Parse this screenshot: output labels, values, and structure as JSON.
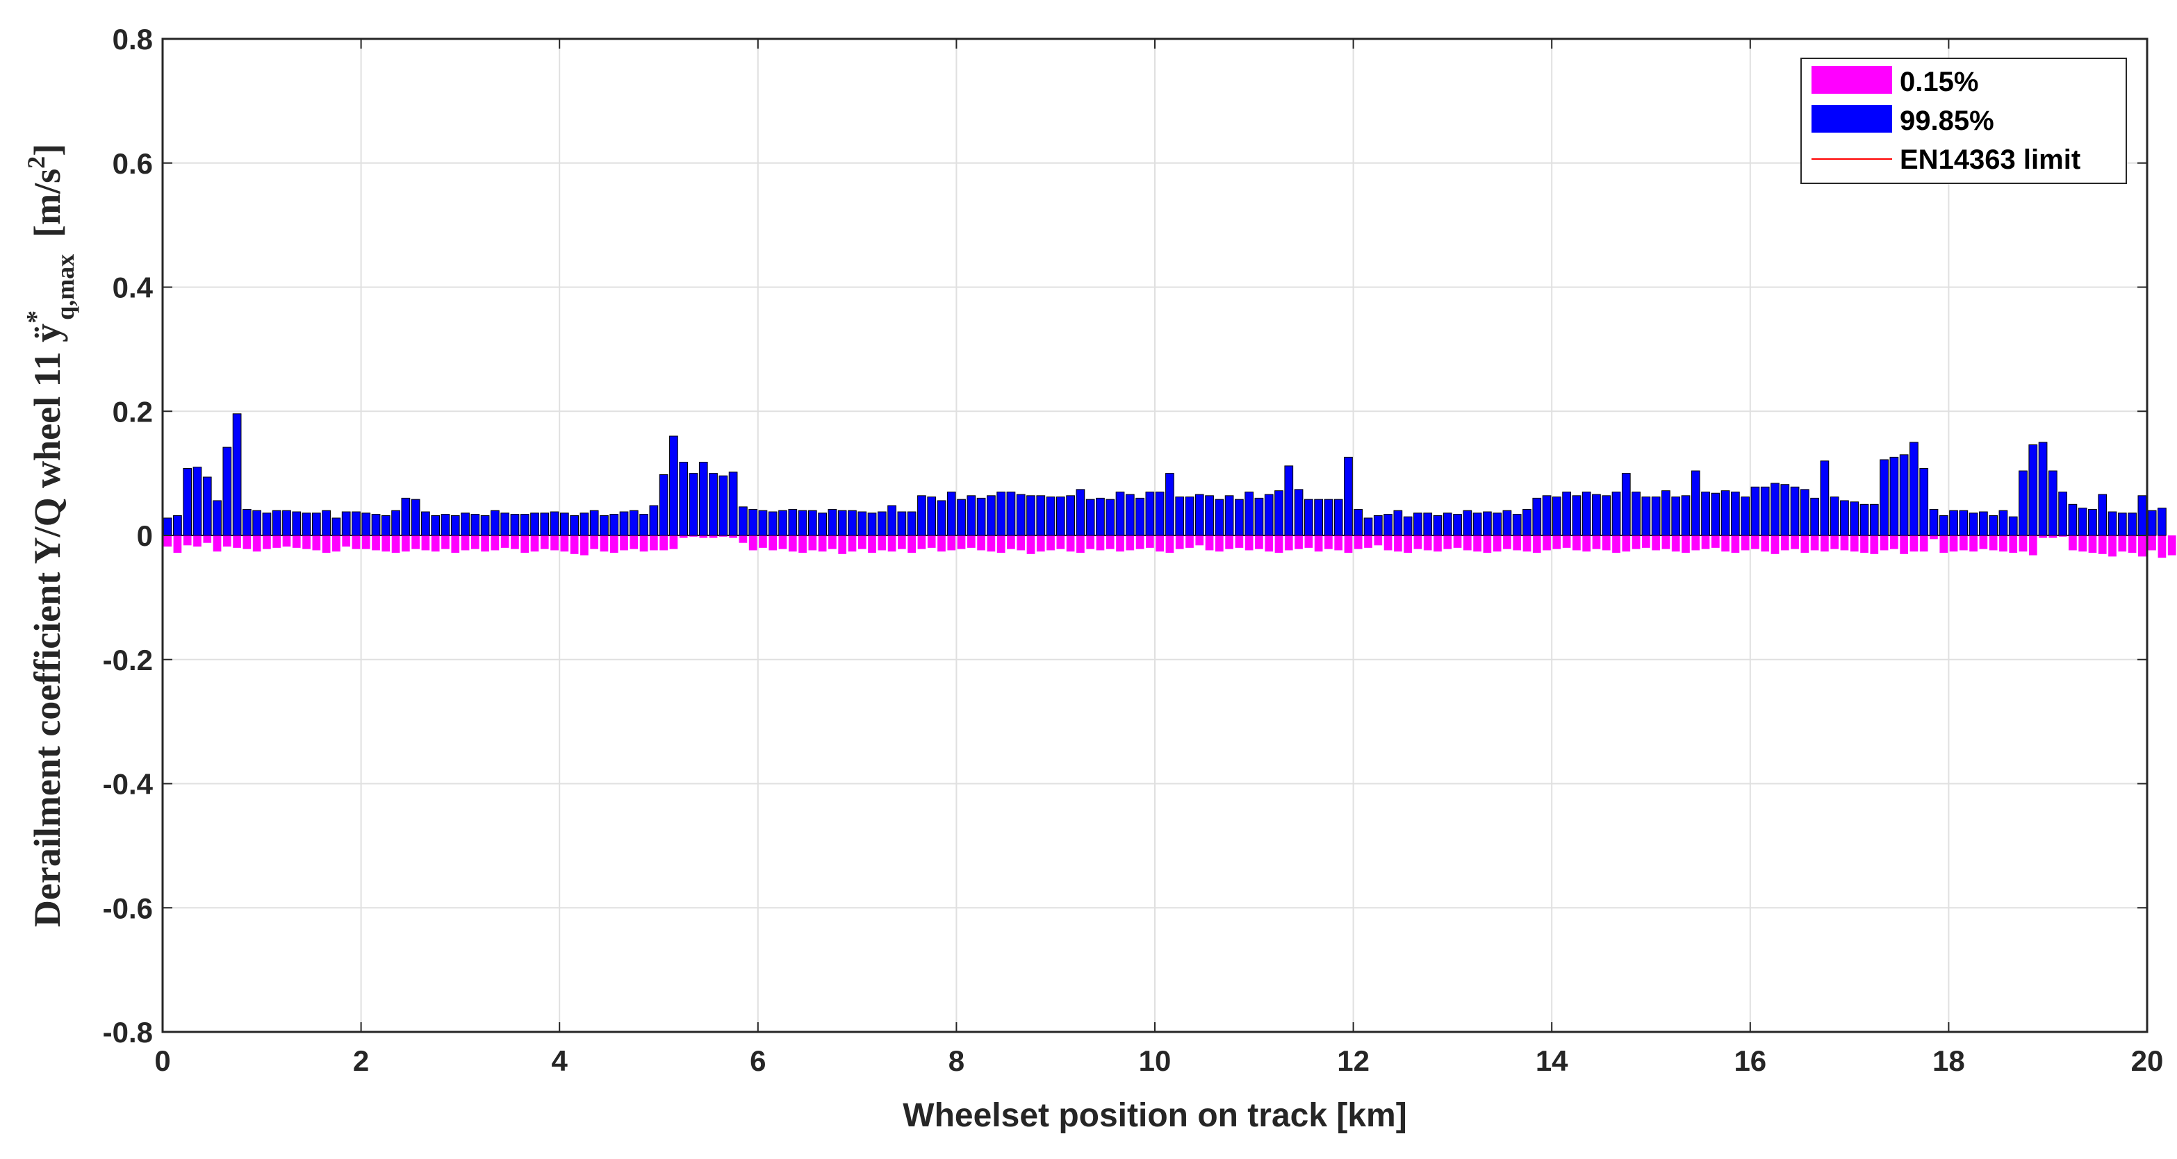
{
  "chart_data": {
    "type": "bar",
    "xlabel": "Wheelset position on track [km]",
    "ylabel": {
      "prefix": "Derailment coefficient Y/Q wheel 11 ÿ",
      "superscript": "*",
      "subscript": "q,max",
      "unit_open": "[m/s",
      "unit_exp": "2",
      "unit_close": "]"
    },
    "xlim": [
      0,
      20
    ],
    "ylim": [
      -0.8,
      0.8
    ],
    "x_ticks": [
      0,
      2,
      4,
      6,
      8,
      10,
      12,
      14,
      16,
      18,
      20
    ],
    "y_ticks": [
      -0.8,
      -0.6,
      -0.4,
      -0.2,
      0,
      0.2,
      0.4,
      0.6,
      0.8
    ],
    "y_tick_labels": [
      "-0.8",
      "-0.6",
      "-0.4",
      "-0.2",
      "0",
      "0.2",
      "0.4",
      "0.6",
      "0.8"
    ],
    "grid": true,
    "legend_position": "top-right",
    "bin_width_km": 0.1,
    "series": [
      {
        "name": "0.15%",
        "color": "#ff00ff",
        "values": [
          -0.018,
          -0.028,
          -0.016,
          -0.018,
          -0.012,
          -0.026,
          -0.018,
          -0.02,
          -0.022,
          -0.026,
          -0.022,
          -0.02,
          -0.018,
          -0.02,
          -0.022,
          -0.024,
          -0.028,
          -0.026,
          -0.018,
          -0.022,
          -0.022,
          -0.024,
          -0.026,
          -0.028,
          -0.026,
          -0.022,
          -0.024,
          -0.026,
          -0.022,
          -0.028,
          -0.024,
          -0.022,
          -0.026,
          -0.024,
          -0.02,
          -0.022,
          -0.028,
          -0.026,
          -0.022,
          -0.024,
          -0.026,
          -0.03,
          -0.032,
          -0.022,
          -0.026,
          -0.028,
          -0.024,
          -0.022,
          -0.026,
          -0.024,
          -0.024,
          -0.022,
          -0.004,
          -0.002,
          -0.004,
          -0.004,
          -0.002,
          -0.004,
          -0.012,
          -0.024,
          -0.02,
          -0.024,
          -0.022,
          -0.026,
          -0.028,
          -0.024,
          -0.026,
          -0.022,
          -0.03,
          -0.026,
          -0.022,
          -0.028,
          -0.024,
          -0.026,
          -0.022,
          -0.028,
          -0.022,
          -0.02,
          -0.026,
          -0.024,
          -0.022,
          -0.02,
          -0.024,
          -0.026,
          -0.028,
          -0.022,
          -0.024,
          -0.03,
          -0.026,
          -0.024,
          -0.022,
          -0.026,
          -0.028,
          -0.022,
          -0.024,
          -0.022,
          -0.026,
          -0.024,
          -0.022,
          -0.02,
          -0.026,
          -0.028,
          -0.022,
          -0.02,
          -0.016,
          -0.024,
          -0.026,
          -0.022,
          -0.02,
          -0.024,
          -0.022,
          -0.026,
          -0.028,
          -0.024,
          -0.022,
          -0.02,
          -0.026,
          -0.022,
          -0.024,
          -0.028,
          -0.022,
          -0.02,
          -0.016,
          -0.024,
          -0.026,
          -0.028,
          -0.022,
          -0.024,
          -0.026,
          -0.022,
          -0.02,
          -0.024,
          -0.026,
          -0.028,
          -0.026,
          -0.022,
          -0.024,
          -0.026,
          -0.028,
          -0.024,
          -0.022,
          -0.02,
          -0.024,
          -0.026,
          -0.022,
          -0.024,
          -0.028,
          -0.026,
          -0.022,
          -0.02,
          -0.024,
          -0.022,
          -0.026,
          -0.028,
          -0.024,
          -0.022,
          -0.02,
          -0.026,
          -0.028,
          -0.024,
          -0.022,
          -0.026,
          -0.03,
          -0.024,
          -0.022,
          -0.028,
          -0.024,
          -0.026,
          -0.022,
          -0.024,
          -0.026,
          -0.028,
          -0.03,
          -0.024,
          -0.022,
          -0.03,
          -0.026,
          -0.026,
          -0.006,
          -0.028,
          -0.026,
          -0.024,
          -0.026,
          -0.022,
          -0.024,
          -0.026,
          -0.028,
          -0.026,
          -0.032,
          -0.004,
          -0.004,
          -0.002,
          -0.024,
          -0.026,
          -0.028,
          -0.03,
          -0.034,
          -0.026,
          -0.028,
          -0.034,
          -0.024,
          -0.036,
          -0.032,
          -0.03
        ]
      },
      {
        "name": "99.85%",
        "color": "#0000ff",
        "values": [
          0.028,
          0.032,
          0.108,
          0.11,
          0.094,
          0.056,
          0.142,
          0.196,
          0.042,
          0.04,
          0.036,
          0.04,
          0.04,
          0.038,
          0.036,
          0.036,
          0.04,
          0.028,
          0.038,
          0.038,
          0.036,
          0.034,
          0.032,
          0.04,
          0.06,
          0.058,
          0.038,
          0.032,
          0.034,
          0.032,
          0.036,
          0.034,
          0.032,
          0.04,
          0.036,
          0.034,
          0.034,
          0.036,
          0.036,
          0.038,
          0.036,
          0.032,
          0.036,
          0.04,
          0.032,
          0.034,
          0.038,
          0.04,
          0.034,
          0.048,
          0.098,
          0.16,
          0.118,
          0.1,
          0.118,
          0.1,
          0.096,
          0.102,
          0.046,
          0.042,
          0.04,
          0.038,
          0.04,
          0.042,
          0.04,
          0.04,
          0.036,
          0.042,
          0.04,
          0.04,
          0.038,
          0.036,
          0.038,
          0.048,
          0.038,
          0.038,
          0.064,
          0.062,
          0.056,
          0.07,
          0.058,
          0.064,
          0.06,
          0.064,
          0.07,
          0.07,
          0.066,
          0.064,
          0.064,
          0.062,
          0.062,
          0.064,
          0.074,
          0.058,
          0.06,
          0.058,
          0.07,
          0.066,
          0.06,
          0.07,
          0.07,
          0.1,
          0.062,
          0.062,
          0.066,
          0.064,
          0.058,
          0.064,
          0.058,
          0.07,
          0.06,
          0.066,
          0.072,
          0.112,
          0.074,
          0.058,
          0.058,
          0.058,
          0.058,
          0.126,
          0.042,
          0.028,
          0.032,
          0.034,
          0.04,
          0.03,
          0.036,
          0.036,
          0.032,
          0.036,
          0.034,
          0.04,
          0.036,
          0.038,
          0.036,
          0.04,
          0.034,
          0.042,
          0.06,
          0.064,
          0.062,
          0.07,
          0.064,
          0.07,
          0.066,
          0.064,
          0.07,
          0.1,
          0.07,
          0.062,
          0.062,
          0.072,
          0.062,
          0.064,
          0.104,
          0.07,
          0.068,
          0.072,
          0.07,
          0.062,
          0.078,
          0.078,
          0.084,
          0.082,
          0.078,
          0.074,
          0.06,
          0.12,
          0.062,
          0.056,
          0.054,
          0.05,
          0.05,
          0.122,
          0.126,
          0.13,
          0.15,
          0.108,
          0.042,
          0.032,
          0.04,
          0.04,
          0.036,
          0.038,
          0.032,
          0.04,
          0.03,
          0.104,
          0.146,
          0.15,
          0.104,
          0.07,
          0.05,
          0.044,
          0.042,
          0.066,
          0.038,
          0.036,
          0.036,
          0.064,
          0.04,
          0.044
        ]
      },
      {
        "name": "EN14363 limit",
        "color": "#ff0000",
        "values": []
      }
    ]
  }
}
